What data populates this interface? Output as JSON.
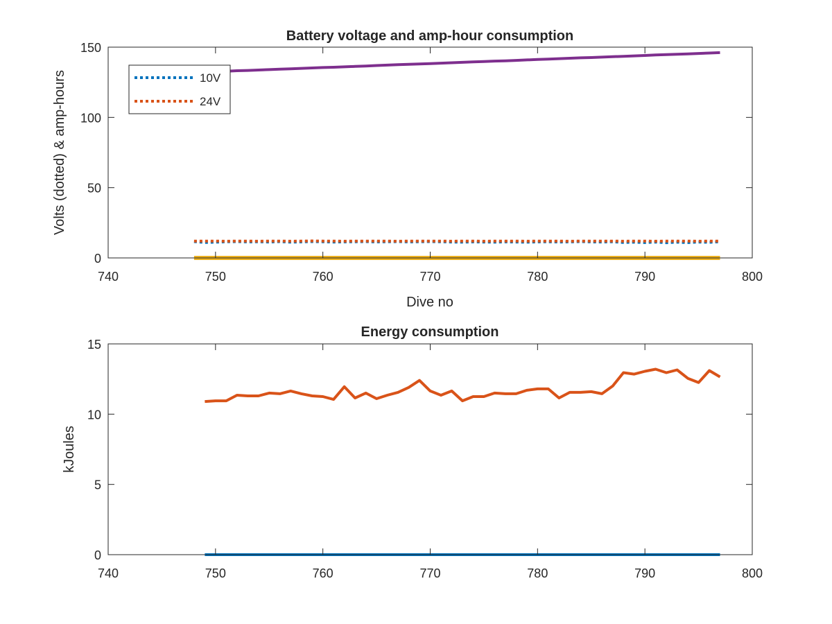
{
  "chart_data": [
    {
      "type": "line",
      "title": "Battery voltage and amp-hour consumption",
      "xlabel": "Dive no",
      "ylabel": "Volts (dotted) & amp-hours",
      "xlim": [
        740,
        800
      ],
      "ylim": [
        0,
        150
      ],
      "xticks": [
        "740",
        "750",
        "760",
        "770",
        "780",
        "790",
        "800"
      ],
      "yticks": [
        "0",
        "50",
        "100",
        "150"
      ],
      "grid": false,
      "legend_position": "top-left",
      "colors": {
        "blue": "#0072BD",
        "orange": "#D95319",
        "yellow": "#EDB120",
        "purple": "#7E2F8E"
      },
      "x": [
        748,
        749,
        750,
        751,
        752,
        753,
        754,
        755,
        756,
        757,
        758,
        759,
        760,
        761,
        762,
        763,
        764,
        765,
        766,
        767,
        768,
        769,
        770,
        771,
        772,
        773,
        774,
        775,
        776,
        777,
        778,
        779,
        780,
        781,
        782,
        783,
        784,
        785,
        786,
        787,
        788,
        789,
        790,
        791,
        792,
        793,
        794,
        795,
        796,
        797
      ],
      "series": [
        {
          "name": "10V",
          "style": "dotted",
          "color": "#0072BD",
          "values": [
            11.6,
            11.0,
            11.2,
            11.5,
            11.6,
            11.4,
            11.5,
            11.3,
            11.6,
            11.2,
            11.4,
            11.6,
            11.5,
            11.3,
            11.4,
            11.5,
            11.6,
            11.4,
            11.5,
            11.6,
            11.4,
            11.5,
            11.6,
            11.5,
            11.3,
            11.2,
            11.4,
            11.3,
            11.2,
            11.4,
            11.3,
            11.2,
            11.4,
            11.5,
            11.3,
            11.4,
            11.6,
            11.4,
            11.3,
            11.5,
            11.0,
            11.2,
            10.9,
            11.3,
            10.8,
            11.2,
            10.9,
            11.3,
            11.1,
            11.5
          ]
        },
        {
          "name": "24V",
          "style": "dotted",
          "color": "#D95319",
          "values": [
            12.0,
            12.0,
            12.0,
            11.9,
            12.0,
            12.0,
            11.9,
            12.0,
            12.0,
            11.9,
            12.0,
            12.1,
            12.0,
            12.0,
            11.9,
            12.0,
            12.0,
            12.0,
            12.0,
            11.9,
            12.0,
            12.0,
            12.0,
            12.0,
            11.9,
            12.0,
            12.0,
            11.9,
            12.0,
            12.0,
            12.0,
            11.9,
            12.0,
            12.0,
            12.0,
            11.9,
            12.0,
            12.0,
            12.0,
            12.0,
            11.9,
            12.0,
            12.0,
            11.9,
            12.0,
            12.0,
            12.0,
            11.9,
            12.0,
            12.0
          ]
        },
        {
          "style": "solid",
          "color": "#EDB120",
          "values": [
            0,
            0,
            0,
            0,
            0,
            0,
            0,
            0,
            0,
            0,
            0,
            0,
            0,
            0,
            0,
            0,
            0,
            0,
            0,
            0,
            0,
            0,
            0,
            0,
            0,
            0,
            0,
            0,
            0,
            0,
            0,
            0,
            0,
            0,
            0,
            0,
            0,
            0,
            0,
            0,
            0,
            0,
            0,
            0,
            0,
            0,
            0,
            0,
            0,
            0
          ]
        },
        {
          "style": "solid",
          "color": "#7E2F8E",
          "values": [
            132.0,
            132.3,
            132.6,
            132.9,
            133.2,
            133.4,
            133.7,
            134.0,
            134.3,
            134.6,
            134.9,
            135.2,
            135.5,
            135.7,
            136.0,
            136.3,
            136.6,
            136.9,
            137.2,
            137.5,
            137.8,
            138.0,
            138.3,
            138.6,
            138.9,
            139.2,
            139.5,
            139.8,
            140.1,
            140.3,
            140.6,
            140.9,
            141.2,
            141.5,
            141.8,
            142.1,
            142.4,
            142.6,
            142.9,
            143.2,
            143.5,
            143.8,
            144.1,
            144.4,
            144.7,
            144.9,
            145.2,
            145.5,
            145.8,
            146.1
          ]
        }
      ]
    },
    {
      "type": "line",
      "title": "Energy consumption",
      "xlabel": "",
      "ylabel": "kJoules",
      "xlim": [
        740,
        800
      ],
      "ylim": [
        0,
        15
      ],
      "xticks": [
        "740",
        "750",
        "760",
        "770",
        "780",
        "790",
        "800"
      ],
      "yticks": [
        "0",
        "5",
        "10",
        "15"
      ],
      "grid": false,
      "x": [
        749,
        750,
        751,
        752,
        753,
        754,
        755,
        756,
        757,
        758,
        759,
        760,
        761,
        762,
        763,
        764,
        765,
        766,
        767,
        768,
        769,
        770,
        771,
        772,
        773,
        774,
        775,
        776,
        777,
        778,
        779,
        780,
        781,
        782,
        783,
        784,
        785,
        786,
        787,
        788,
        789,
        790,
        791,
        792,
        793,
        794,
        795,
        796,
        797
      ],
      "series": [
        {
          "style": "solid",
          "color": "#0072BD",
          "values": [
            0,
            0,
            0,
            0,
            0,
            0,
            0,
            0,
            0,
            0,
            0,
            0,
            0,
            0,
            0,
            0,
            0,
            0,
            0,
            0,
            0,
            0,
            0,
            0,
            0,
            0,
            0,
            0,
            0,
            0,
            0,
            0,
            0,
            0,
            0,
            0,
            0,
            0,
            0,
            0,
            0,
            0,
            0,
            0,
            0,
            0,
            0,
            0,
            0
          ]
        },
        {
          "style": "solid",
          "color": "#D95319",
          "values": [
            10.9,
            10.95,
            10.95,
            11.35,
            11.3,
            11.3,
            11.5,
            11.45,
            11.65,
            11.45,
            11.3,
            11.25,
            11.05,
            11.95,
            11.15,
            11.5,
            11.1,
            11.35,
            11.55,
            11.9,
            12.4,
            11.65,
            11.35,
            11.65,
            10.95,
            11.25,
            11.25,
            11.5,
            11.45,
            11.45,
            11.7,
            11.8,
            11.8,
            11.15,
            11.55,
            11.55,
            11.6,
            11.45,
            12.0,
            12.95,
            12.85,
            13.05,
            13.2,
            12.95,
            13.15,
            12.55,
            12.25,
            13.1,
            12.65
          ]
        }
      ]
    }
  ]
}
